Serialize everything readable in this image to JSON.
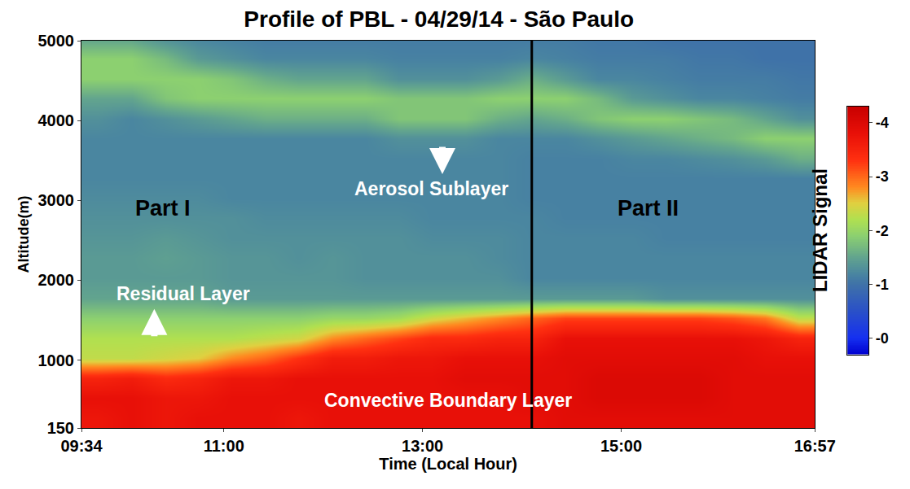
{
  "chart_data": {
    "type": "heatmap",
    "title": "Profile of PBL - 04/29/14 - São Paulo",
    "x_label": "Time (Local Hour)",
    "y_label": "Altitude(m)",
    "x": [
      9.735,
      10.07,
      10.41,
      10.74,
      11.08,
      11.42,
      11.75,
      12.09,
      12.42,
      12.76,
      13.09,
      13.43,
      13.77,
      14.1,
      14.44,
      14.77,
      15.11,
      15.45,
      15.78,
      16.12,
      16.45,
      16.78
    ],
    "y": [
      275,
      525,
      775,
      1025,
      1275,
      1525,
      1775,
      2025,
      2275,
      2525,
      2775,
      3025,
      3275,
      3525,
      3775,
      4025,
      4275,
      4525,
      4775,
      5025
    ],
    "cells": [
      [
        -3.7,
        -3.8,
        -3.7,
        -3.8,
        -3.8,
        -3.8,
        -3.7,
        -3.8,
        -3.8,
        -3.8,
        -3.8,
        -3.8,
        -3.8,
        -3.8,
        -3.9,
        -3.9,
        -3.9,
        -3.9,
        -3.9,
        -3.9,
        -3.9,
        -3.9
      ],
      [
        -3.8,
        -3.8,
        -3.7,
        -3.7,
        -3.8,
        -3.8,
        -3.8,
        -3.8,
        -3.8,
        -3.8,
        -3.8,
        -3.8,
        -3.8,
        -3.9,
        -3.9,
        -4.0,
        -4.0,
        -4.0,
        -4.0,
        -3.9,
        -3.9,
        -3.9
      ],
      [
        -3.5,
        -3.6,
        -3.4,
        -3.5,
        -3.7,
        -3.7,
        -3.8,
        -3.8,
        -3.8,
        -3.8,
        -3.8,
        -3.9,
        -3.9,
        -3.9,
        -3.9,
        -4.0,
        -4.0,
        -4.0,
        -4.0,
        -3.9,
        -3.9,
        -3.9
      ],
      [
        -2.3,
        -2.3,
        -2.4,
        -2.5,
        -2.8,
        -3.0,
        -3.3,
        -3.6,
        -3.6,
        -3.7,
        -3.7,
        -3.8,
        -3.8,
        -3.8,
        -3.9,
        -3.9,
        -3.9,
        -3.9,
        -3.9,
        -3.9,
        -3.8,
        -3.8
      ],
      [
        -2.2,
        -2.2,
        -2.2,
        -2.2,
        -2.2,
        -2.3,
        -2.4,
        -2.8,
        -3.0,
        -3.2,
        -3.4,
        -3.4,
        -3.5,
        -3.5,
        -3.8,
        -3.8,
        -3.8,
        -3.8,
        -3.8,
        -3.8,
        -3.7,
        -3.5
      ],
      [
        -1.9,
        -1.9,
        -1.9,
        -1.9,
        -1.9,
        -1.9,
        -1.9,
        -2.0,
        -2.0,
        -2.1,
        -2.4,
        -2.6,
        -2.8,
        -3.0,
        -3.2,
        -3.2,
        -3.2,
        -3.2,
        -3.2,
        -3.1,
        -2.9,
        -2.3
      ],
      [
        -1.5,
        -1.5,
        -1.5,
        -1.5,
        -1.4,
        -1.4,
        -1.4,
        -1.4,
        -1.4,
        -1.4,
        -1.4,
        -1.4,
        -1.4,
        -1.4,
        -1.4,
        -1.4,
        -1.4,
        -1.3,
        -1.3,
        -1.3,
        -1.3,
        -1.3
      ],
      [
        -1.4,
        -1.4,
        -1.4,
        -1.4,
        -1.35,
        -1.35,
        -1.35,
        -1.35,
        -1.3,
        -1.3,
        -1.3,
        -1.3,
        -1.3,
        -1.2,
        -1.2,
        -1.2,
        -1.2,
        -1.2,
        -1.2,
        -1.2,
        -1.2,
        -1.2
      ],
      [
        -1.4,
        -1.4,
        -1.45,
        -1.4,
        -1.35,
        -1.35,
        -1.3,
        -1.35,
        -1.3,
        -1.3,
        -1.3,
        -1.3,
        -1.25,
        -1.2,
        -1.2,
        -1.2,
        -1.2,
        -1.2,
        -1.2,
        -1.2,
        -1.2,
        -1.2
      ],
      [
        -1.35,
        -1.35,
        -1.4,
        -1.35,
        -1.3,
        -1.3,
        -1.3,
        -1.3,
        -1.3,
        -1.3,
        -1.25,
        -1.25,
        -1.25,
        -1.2,
        -1.2,
        -1.2,
        -1.2,
        -1.15,
        -1.15,
        -1.15,
        -1.15,
        -1.15
      ],
      [
        -1.3,
        -1.3,
        -1.3,
        -1.3,
        -1.3,
        -1.25,
        -1.25,
        -1.25,
        -1.25,
        -1.25,
        -1.2,
        -1.2,
        -1.2,
        -1.2,
        -1.15,
        -1.15,
        -1.15,
        -1.15,
        -1.15,
        -1.15,
        -1.15,
        -1.15
      ],
      [
        -1.25,
        -1.25,
        -1.25,
        -1.25,
        -1.2,
        -1.2,
        -1.2,
        -1.2,
        -1.2,
        -1.2,
        -1.2,
        -1.2,
        -1.2,
        -1.15,
        -1.15,
        -1.15,
        -1.15,
        -1.15,
        -1.15,
        -1.15,
        -1.15,
        -1.15
      ],
      [
        -1.2,
        -1.2,
        -1.2,
        -1.2,
        -1.2,
        -1.2,
        -1.2,
        -1.2,
        -1.2,
        -1.2,
        -1.2,
        -1.2,
        -1.2,
        -1.15,
        -1.15,
        -1.15,
        -1.15,
        -1.15,
        -1.15,
        -1.15,
        -1.15,
        -1.15
      ],
      [
        -1.2,
        -1.2,
        -1.2,
        -1.2,
        -1.2,
        -1.2,
        -1.2,
        -1.2,
        -1.2,
        -1.2,
        -1.2,
        -1.2,
        -1.2,
        -1.15,
        -1.15,
        -1.15,
        -1.2,
        -1.2,
        -1.25,
        -1.3,
        -1.4,
        -1.6
      ],
      [
        -1.2,
        -1.2,
        -1.2,
        -1.2,
        -1.2,
        -1.2,
        -1.2,
        -1.2,
        -1.2,
        -1.3,
        -1.3,
        -1.3,
        -1.2,
        -1.2,
        -1.2,
        -1.3,
        -1.4,
        -1.5,
        -1.6,
        -1.7,
        -1.9,
        -1.9
      ],
      [
        -1.3,
        -1.2,
        -1.3,
        -1.4,
        -1.5,
        -1.6,
        -1.6,
        -1.6,
        -1.6,
        -1.8,
        -1.8,
        -1.8,
        -1.6,
        -1.5,
        -1.6,
        -1.8,
        -1.9,
        -1.9,
        -1.8,
        -1.7,
        -1.5,
        -1.3
      ],
      [
        -1.5,
        -1.5,
        -1.8,
        -1.9,
        -1.9,
        -1.9,
        -1.9,
        -1.9,
        -1.9,
        -1.8,
        -1.8,
        -1.8,
        -1.9,
        -1.9,
        -1.9,
        -1.7,
        -1.4,
        -1.3,
        -1.2,
        -1.2,
        -1.15,
        -1.1
      ],
      [
        -1.9,
        -1.9,
        -1.9,
        -1.9,
        -1.8,
        -1.6,
        -1.5,
        -1.5,
        -1.5,
        -1.3,
        -1.3,
        -1.3,
        -1.4,
        -1.6,
        -1.4,
        -1.2,
        -1.2,
        -1.15,
        -1.1,
        -1.1,
        -1.1,
        -1.05
      ],
      [
        -1.9,
        -1.9,
        -1.7,
        -1.4,
        -1.3,
        -1.2,
        -1.2,
        -1.2,
        -1.2,
        -1.15,
        -1.15,
        -1.15,
        -1.15,
        -1.2,
        -1.15,
        -1.1,
        -1.1,
        -1.1,
        -1.05,
        -1.05,
        -1.0,
        -1.0
      ],
      [
        -1.5,
        -1.5,
        -1.3,
        -1.2,
        -1.15,
        -1.1,
        -1.1,
        -1.1,
        -1.1,
        -1.1,
        -1.1,
        -1.1,
        -1.1,
        -1.1,
        -1.1,
        -1.05,
        -1.05,
        -1.0,
        -1.0,
        -1.0,
        -1.0,
        -1.0
      ]
    ],
    "xlim": [
      9.567,
      16.95
    ],
    "xticks": [
      {
        "value": 9.567,
        "label": "09:34"
      },
      {
        "value": 11,
        "label": "11:00"
      },
      {
        "value": 13,
        "label": "13:00"
      },
      {
        "value": 15,
        "label": "15:00"
      },
      {
        "value": 16.95,
        "label": "16:57"
      }
    ],
    "ylim": [
      150,
      5000
    ],
    "yticks": [
      150,
      1000,
      2000,
      3000,
      4000,
      5000
    ],
    "colorbar": {
      "label": "LIDAR Signal",
      "range": [
        0.3,
        -4.3
      ],
      "ticks": [
        -4,
        -3,
        -2,
        -1,
        {
          "value": 0,
          "label": "-0"
        }
      ]
    },
    "divider_x": 14.1,
    "annotations": [
      {
        "text": "Part I",
        "x": 10.39,
        "y": 2900,
        "color": "black"
      },
      {
        "text": "Part II",
        "x": 15.27,
        "y": 2900,
        "color": "black"
      },
      {
        "text": "Aerosol Sublayer",
        "x": 13.09,
        "y": 3150,
        "color": "white"
      },
      {
        "text": "Residual Layer",
        "x": 10.59,
        "y": 1830,
        "color": "white"
      },
      {
        "text": "Convective Boundary Layer",
        "x": 13.26,
        "y": 500,
        "color": "white"
      }
    ],
    "arrows": [
      {
        "x": 13.2,
        "y": 3330,
        "direction": "down"
      },
      {
        "x": 10.3,
        "y": 1640,
        "direction": "up"
      }
    ]
  }
}
